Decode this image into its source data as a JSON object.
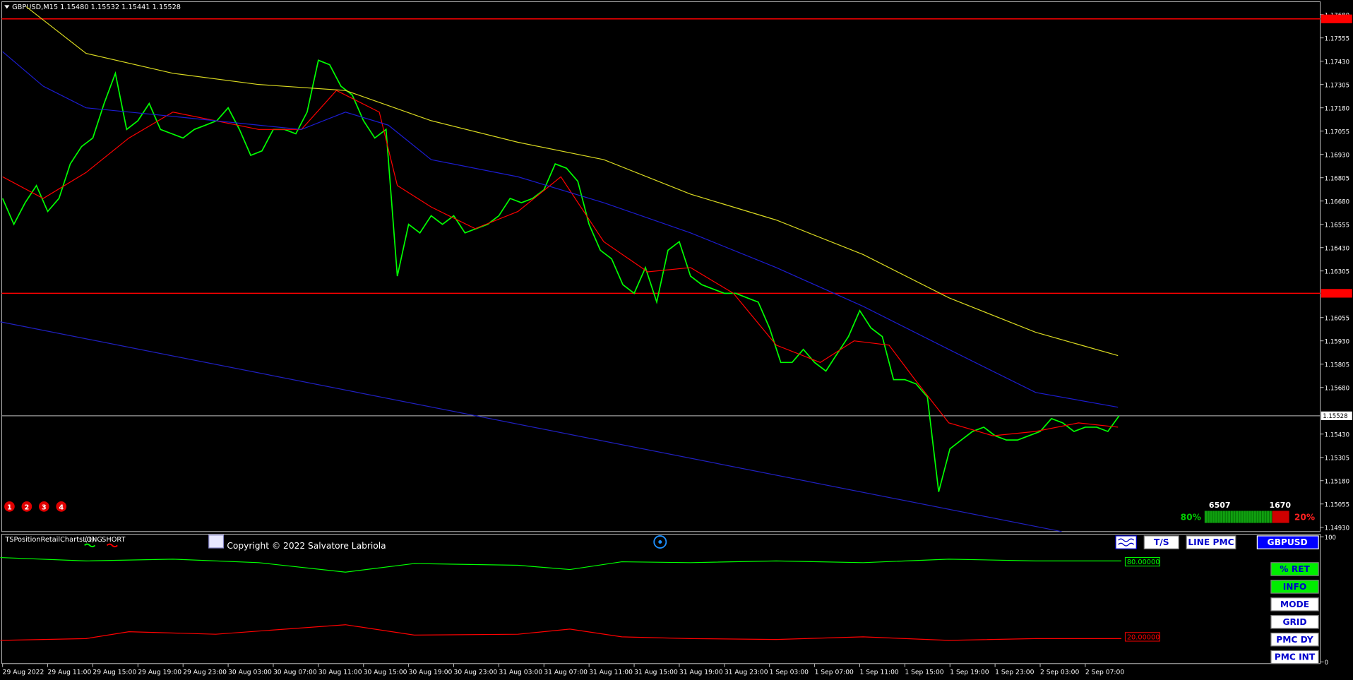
{
  "header": {
    "text": "GBPUSD,M15  1.15480 1.15532 1.15441 1.15528"
  },
  "chart_data": [
    {
      "type": "line",
      "xlim": [
        -0.23,
        116.83
      ],
      "ylim": [
        1.14907,
        1.17749
      ],
      "yticks": [
        {
          "value": 1.1768,
          "label": "1.17680"
        },
        {
          "value": 1.17555,
          "label": "1.17555"
        },
        {
          "value": 1.1743,
          "label": "1.17430"
        },
        {
          "value": 1.17305,
          "label": "1.17305"
        },
        {
          "value": 1.1718,
          "label": "1.17180"
        },
        {
          "value": 1.17055,
          "label": "1.17055"
        },
        {
          "value": 1.1693,
          "label": "1.16930"
        },
        {
          "value": 1.16805,
          "label": "1.16805"
        },
        {
          "value": 1.1668,
          "label": "1.16680"
        },
        {
          "value": 1.16555,
          "label": "1.16555"
        },
        {
          "value": 1.1643,
          "label": "1.16430"
        },
        {
          "value": 1.16305,
          "label": "1.16305"
        },
        {
          "value": 1.16055,
          "label": "1.16055"
        },
        {
          "value": 1.1593,
          "label": "1.15930"
        },
        {
          "value": 1.15805,
          "label": "1.15805"
        },
        {
          "value": 1.1568,
          "label": "1.15680"
        },
        {
          "value": 1.1543,
          "label": "1.15430"
        },
        {
          "value": 1.15305,
          "label": "1.15305"
        },
        {
          "value": 1.1518,
          "label": "1.15180"
        },
        {
          "value": 1.15055,
          "label": "1.15055"
        },
        {
          "value": 1.1493,
          "label": "1.14930"
        }
      ],
      "xticks": [
        {
          "value": 0,
          "label": "29 Aug 2022"
        },
        {
          "value": 4,
          "label": "29 Aug 11:00"
        },
        {
          "value": 8,
          "label": "29 Aug 15:00"
        },
        {
          "value": 12,
          "label": "29 Aug 19:00"
        },
        {
          "value": 16,
          "label": "29 Aug 23:00"
        },
        {
          "value": 20,
          "label": "30 Aug 03:00"
        },
        {
          "value": 24,
          "label": "30 Aug 07:00"
        },
        {
          "value": 28,
          "label": "30 Aug 11:00"
        },
        {
          "value": 32,
          "label": "30 Aug 15:00"
        },
        {
          "value": 36,
          "label": "30 Aug 19:00"
        },
        {
          "value": 40,
          "label": "30 Aug 23:00"
        },
        {
          "value": 44,
          "label": "31 Aug 03:00"
        },
        {
          "value": 48,
          "label": "31 Aug 07:00"
        },
        {
          "value": 52,
          "label": "31 Aug 11:00"
        },
        {
          "value": 56,
          "label": "31 Aug 15:00"
        },
        {
          "value": 60,
          "label": "31 Aug 19:00"
        },
        {
          "value": 64,
          "label": "31 Aug 23:00"
        },
        {
          "value": 68,
          "label": "1 Sep 03:00"
        },
        {
          "value": 72,
          "label": "1 Sep 07:00"
        },
        {
          "value": 76,
          "label": "1 Sep 11:00"
        },
        {
          "value": 80,
          "label": "1 Sep 15:00"
        },
        {
          "value": 84,
          "label": "1 Sep 19:00"
        },
        {
          "value": 88,
          "label": "1 Sep 23:00"
        },
        {
          "value": 92,
          "label": "2 Sep 03:00"
        },
        {
          "value": 96,
          "label": "2 Sep 07:00"
        }
      ],
      "levels": [
        {
          "value": 1.17657,
          "color": "#ff0000"
        },
        {
          "value": 1.16185,
          "color": "#ff0000"
        }
      ],
      "current": {
        "value": 1.15528,
        "label": "1.15528",
        "color": "#c0c0c0"
      },
      "series": [
        {
          "color": "#00ff00",
          "values": [
            1.16694,
            1.16555,
            1.16671,
            1.16763,
            1.16624,
            1.16694,
            1.16879,
            1.16972,
            1.17018,
            1.17203,
            1.17365,
            1.17064,
            1.17111,
            1.17203,
            1.17064,
            1.17041,
            1.17018,
            1.17064,
            1.17087,
            1.17111,
            1.1718,
            1.17064,
            1.16925,
            1.16949,
            1.17064,
            1.17064,
            1.17041,
            1.17157,
            1.17435,
            1.17411,
            1.17296,
            1.17249,
            1.17111,
            1.17018,
            1.17064,
            1.16277,
            1.16555,
            1.16509,
            1.16601,
            1.16555,
            1.16601,
            1.16509,
            1.16532,
            1.16555,
            1.16601,
            1.16694,
            1.16671,
            1.16694,
            1.1674,
            1.16879,
            1.16856,
            1.16786,
            1.16555,
            1.16416,
            1.1637,
            1.16231,
            1.16185,
            1.16323,
            1.16138,
            1.16416,
            1.16462,
            1.16277,
            1.16231,
            1.16208,
            1.16185,
            1.16185,
            1.16161,
            1.16138,
            1.15999,
            1.15814,
            1.15814,
            1.15884,
            1.15814,
            1.15768,
            1.15861,
            1.15953,
            1.16092,
            1.15999,
            1.15953,
            1.15722,
            1.15722,
            1.15699,
            1.15629,
            1.1512,
            1.15351,
            1.15398,
            1.15444,
            1.15467,
            1.15421,
            1.15398,
            1.15398,
            1.15421,
            1.15444,
            1.15513,
            1.1549,
            1.15444,
            1.15467,
            1.15467,
            1.15444,
            1.15528
          ]
        },
        {
          "color": "#ff0000",
          "x": [
            0,
            3.6,
            7.4,
            11.2,
            15.1,
            22.7,
            26.5,
            29.6,
            33.4,
            35,
            38,
            41.9,
            45.7,
            49.5,
            53.3,
            57.2,
            61,
            64.8,
            68.6,
            72.5,
            75.5,
            78.6,
            80.9,
            83.9,
            87.8,
            91.6,
            95.4,
            98.9
          ],
          "values": [
            1.1681,
            1.16694,
            1.16833,
            1.17018,
            1.17157,
            1.17064,
            1.17064,
            1.17273,
            1.17157,
            1.16763,
            1.16648,
            1.16532,
            1.16624,
            1.1681,
            1.16462,
            1.163,
            1.16323,
            1.16185,
            1.15907,
            1.15814,
            1.1593,
            1.15907,
            1.15722,
            1.1549,
            1.15421,
            1.15444,
            1.1549,
            1.15467
          ]
        },
        {
          "color": "#1c1cd0",
          "x": [
            0,
            3.6,
            7.4,
            15.1,
            22.7,
            26.5,
            30.4,
            34.2,
            38,
            45.7,
            53.3,
            61,
            68.6,
            76.3,
            83.9,
            91.6,
            98.9
          ],
          "values": [
            1.17481,
            1.17296,
            1.1718,
            1.17134,
            1.17087,
            1.17064,
            1.17157,
            1.17087,
            1.16902,
            1.1681,
            1.16671,
            1.16509,
            1.16323,
            1.16115,
            1.15884,
            1.15653,
            1.15574
          ]
        },
        {
          "color": "#d8d820",
          "x": [
            2.1,
            7.4,
            15.1,
            22.7,
            30.4,
            38,
            45.7,
            53.3,
            61,
            68.6,
            76.3,
            83.9,
            91.6,
            98.9
          ],
          "values": [
            1.17722,
            1.17472,
            1.17365,
            1.17305,
            1.17273,
            1.17111,
            1.16995,
            1.16902,
            1.16717,
            1.16578,
            1.16393,
            1.16161,
            1.15976,
            1.15851
          ]
        },
        {
          "color": "#2020c0",
          "x": [
            -0.2,
            93.9
          ],
          "values": [
            1.16032,
            1.14907
          ]
        }
      ]
    },
    {
      "type": "line",
      "title": "TSPositionRetailCharts (1)",
      "xlim": [
        -0.23,
        116.83
      ],
      "ylim": [
        0,
        100
      ],
      "yticks": [
        0,
        100
      ],
      "levels": [
        {
          "value": 80,
          "label": "80.00000",
          "color": "#00ff00"
        },
        {
          "value": 20,
          "label": "20.00000",
          "color": "#ff0000"
        }
      ],
      "series": [
        {
          "name": "LONG",
          "color": "#00ff00",
          "x": [
            -0.2,
            7.4,
            15.1,
            22.7,
            30.4,
            36.5,
            45.7,
            50.3,
            54.9,
            61,
            68.6,
            76.3,
            83.9,
            91.6,
            99.2
          ],
          "values": [
            83.4,
            80.7,
            82.1,
            79.3,
            71.7,
            78.6,
            77.2,
            73.8,
            80,
            79.3,
            80.7,
            79.3,
            82.1,
            80.7,
            80.7
          ]
        },
        {
          "name": "SHORT",
          "color": "#ff0000",
          "x": [
            -0.2,
            7.4,
            11.2,
            18.9,
            30.4,
            36.5,
            45.7,
            50.3,
            54.9,
            61,
            68.6,
            76.3,
            83.9,
            91.6,
            99.2
          ],
          "values": [
            17.2,
            18.6,
            24.1,
            22.1,
            29.7,
            21.4,
            22.1,
            26.2,
            20,
            18.6,
            17.9,
            20,
            17.2,
            18.6,
            18.6
          ]
        }
      ]
    }
  ],
  "panel": {
    "copyright": "Copyright © 2022 Salvatore Labriola",
    "markers": [
      "1",
      "2",
      "3",
      "4"
    ],
    "top_buttons": [
      "T/S",
      "LINE PMC"
    ],
    "symbol_button": "GBPUSD",
    "side_buttons": [
      "% RET",
      "INFO",
      "MODE",
      "GRID",
      "PMC DY",
      "PMC INT"
    ],
    "active_buttons": [
      "% RET",
      "INFO"
    ],
    "ratio": {
      "long_count": 6507,
      "short_count": 1670,
      "long": {
        "value": 80,
        "label": "80%"
      },
      "short": {
        "value": 20,
        "label": "20%"
      }
    }
  }
}
